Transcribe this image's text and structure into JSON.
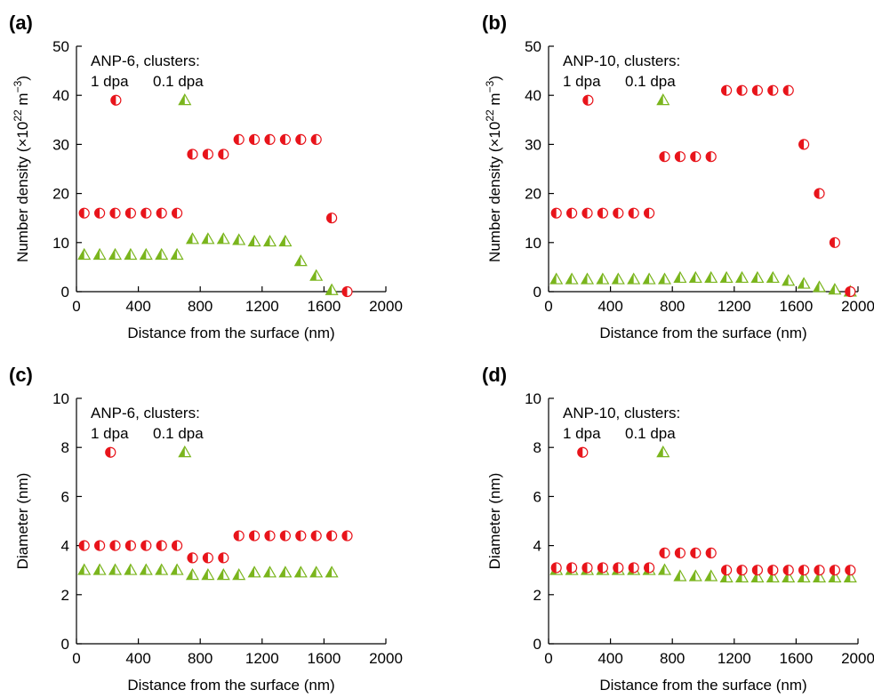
{
  "figure": {
    "colors": {
      "circle": "#e8141b",
      "triangle": "#7ab51d",
      "axis": "#000000"
    }
  },
  "chart_data": [
    {
      "panel": "(a)",
      "type": "scatter",
      "xlabel": "Distance from the surface (nm)",
      "ylabel": "Number density (×10²² m⁻³)",
      "ylabel_parts": {
        "main": "Number density (×10",
        "sup1": "22",
        "mid": " m",
        "sup2": "−3",
        "end": ")"
      },
      "xlim": [
        0,
        2000
      ],
      "ylim": [
        0,
        50
      ],
      "xticks": [
        0,
        400,
        800,
        1200,
        1600,
        2000
      ],
      "yticks": [
        0,
        10,
        20,
        30,
        40,
        50
      ],
      "annotation": {
        "title": "ANP-6, clusters:",
        "series1": "1 dpa",
        "series2": "0.1 dpa"
      },
      "legend_markers": {
        "circle": [
          255,
          39
        ],
        "triangle": [
          700,
          39
        ]
      },
      "series": [
        {
          "name": "1 dpa",
          "marker": "circle",
          "x": [
            50,
            150,
            250,
            350,
            450,
            550,
            650,
            750,
            850,
            950,
            1050,
            1150,
            1250,
            1350,
            1450,
            1550,
            1650,
            1750
          ],
          "y": [
            16,
            16,
            16,
            16,
            16,
            16,
            16,
            28,
            28,
            28,
            31,
            31,
            31,
            31,
            31,
            31,
            15,
            0
          ]
        },
        {
          "name": "0.1 dpa",
          "marker": "triangle",
          "x": [
            50,
            150,
            250,
            350,
            450,
            550,
            650,
            750,
            850,
            950,
            1050,
            1150,
            1250,
            1350,
            1450,
            1550,
            1650
          ],
          "y": [
            7.5,
            7.5,
            7.5,
            7.5,
            7.5,
            7.5,
            7.5,
            10.7,
            10.7,
            10.7,
            10.5,
            10.2,
            10.2,
            10.2,
            6.2,
            3.2,
            0.3
          ]
        }
      ]
    },
    {
      "panel": "(b)",
      "type": "scatter",
      "xlabel": "Distance from the surface (nm)",
      "ylabel": "Number density (×10²² m⁻³)",
      "ylabel_parts": {
        "main": "Number density (×10",
        "sup1": "22",
        "mid": " m",
        "sup2": "−3",
        "end": ")"
      },
      "xlim": [
        0,
        2000
      ],
      "ylim": [
        0,
        50
      ],
      "xticks": [
        0,
        400,
        800,
        1200,
        1600,
        2000
      ],
      "yticks": [
        0,
        10,
        20,
        30,
        40,
        50
      ],
      "annotation": {
        "title": "ANP-10, clusters:",
        "series1": "1 dpa",
        "series2": "0.1 dpa"
      },
      "legend_markers": {
        "circle": [
          255,
          39
        ],
        "triangle": [
          740,
          39
        ]
      },
      "series": [
        {
          "name": "1 dpa",
          "marker": "circle",
          "x": [
            50,
            150,
            250,
            350,
            450,
            550,
            650,
            750,
            850,
            950,
            1050,
            1150,
            1250,
            1350,
            1450,
            1550,
            1650,
            1750,
            1850,
            1950
          ],
          "y": [
            16,
            16,
            16,
            16,
            16,
            16,
            16,
            27.5,
            27.5,
            27.5,
            27.5,
            41,
            41,
            41,
            41,
            41,
            30,
            20,
            10,
            0
          ]
        },
        {
          "name": "0.1 dpa",
          "marker": "triangle",
          "x": [
            50,
            150,
            250,
            350,
            450,
            550,
            650,
            750,
            850,
            950,
            1050,
            1150,
            1250,
            1350,
            1450,
            1550,
            1650,
            1750,
            1850,
            1950
          ],
          "y": [
            2.5,
            2.5,
            2.5,
            2.5,
            2.5,
            2.5,
            2.5,
            2.5,
            2.8,
            2.8,
            2.8,
            2.8,
            2.8,
            2.8,
            2.8,
            2.2,
            1.6,
            0.9,
            0.4,
            0
          ]
        }
      ]
    },
    {
      "panel": "(c)",
      "type": "scatter",
      "xlabel": "Distance from the surface (nm)",
      "ylabel": "Diameter (nm)",
      "xlim": [
        0,
        2000
      ],
      "ylim": [
        0,
        10
      ],
      "xticks": [
        0,
        400,
        800,
        1200,
        1600,
        2000
      ],
      "yticks": [
        0,
        2,
        4,
        6,
        8,
        10
      ],
      "annotation": {
        "title": "ANP-6, clusters:",
        "series1": "1 dpa",
        "series2": "0.1 dpa"
      },
      "legend_markers": {
        "circle": [
          220,
          7.8
        ],
        "triangle": [
          700,
          7.8
        ]
      },
      "series": [
        {
          "name": "1 dpa",
          "marker": "circle",
          "x": [
            50,
            150,
            250,
            350,
            450,
            550,
            650,
            750,
            850,
            950,
            1050,
            1150,
            1250,
            1350,
            1450,
            1550,
            1650,
            1750
          ],
          "y": [
            4,
            4,
            4,
            4,
            4,
            4,
            4,
            3.5,
            3.5,
            3.5,
            4.4,
            4.4,
            4.4,
            4.4,
            4.4,
            4.4,
            4.4,
            4.4
          ]
        },
        {
          "name": "0.1 dpa",
          "marker": "triangle",
          "x": [
            50,
            150,
            250,
            350,
            450,
            550,
            650,
            750,
            850,
            950,
            1050,
            1150,
            1250,
            1350,
            1450,
            1550,
            1650
          ],
          "y": [
            3,
            3,
            3,
            3,
            3,
            3,
            3,
            2.8,
            2.8,
            2.8,
            2.8,
            2.9,
            2.9,
            2.9,
            2.9,
            2.9,
            2.9
          ]
        }
      ]
    },
    {
      "panel": "(d)",
      "type": "scatter",
      "xlabel": "Distance from the surface (nm)",
      "ylabel": "Diameter (nm)",
      "xlim": [
        0,
        2000
      ],
      "ylim": [
        0,
        10
      ],
      "xticks": [
        0,
        400,
        800,
        1200,
        1600,
        2000
      ],
      "yticks": [
        0,
        2,
        4,
        6,
        8,
        10
      ],
      "annotation": {
        "title": "ANP-10, clusters:",
        "series1": "1 dpa",
        "series2": "0.1 dpa"
      },
      "legend_markers": {
        "circle": [
          220,
          7.8
        ],
        "triangle": [
          740,
          7.8
        ]
      },
      "series": [
        {
          "name": "1 dpa",
          "marker": "circle",
          "x": [
            50,
            150,
            250,
            350,
            450,
            550,
            650,
            750,
            850,
            950,
            1050,
            1150,
            1250,
            1350,
            1450,
            1550,
            1650,
            1750,
            1850,
            1950
          ],
          "y": [
            3.1,
            3.1,
            3.1,
            3.1,
            3.1,
            3.1,
            3.1,
            3.7,
            3.7,
            3.7,
            3.7,
            3,
            3,
            3,
            3,
            3,
            3,
            3,
            3,
            3
          ]
        },
        {
          "name": "0.1 dpa",
          "marker": "triangle",
          "x": [
            50,
            150,
            250,
            350,
            450,
            550,
            650,
            750,
            850,
            950,
            1050,
            1150,
            1250,
            1350,
            1450,
            1550,
            1650,
            1750,
            1850,
            1950
          ],
          "y": [
            3,
            3,
            3,
            3,
            3,
            3,
            3,
            3,
            2.75,
            2.75,
            2.75,
            2.7,
            2.7,
            2.7,
            2.7,
            2.7,
            2.7,
            2.7,
            2.7,
            2.7
          ]
        }
      ]
    }
  ]
}
